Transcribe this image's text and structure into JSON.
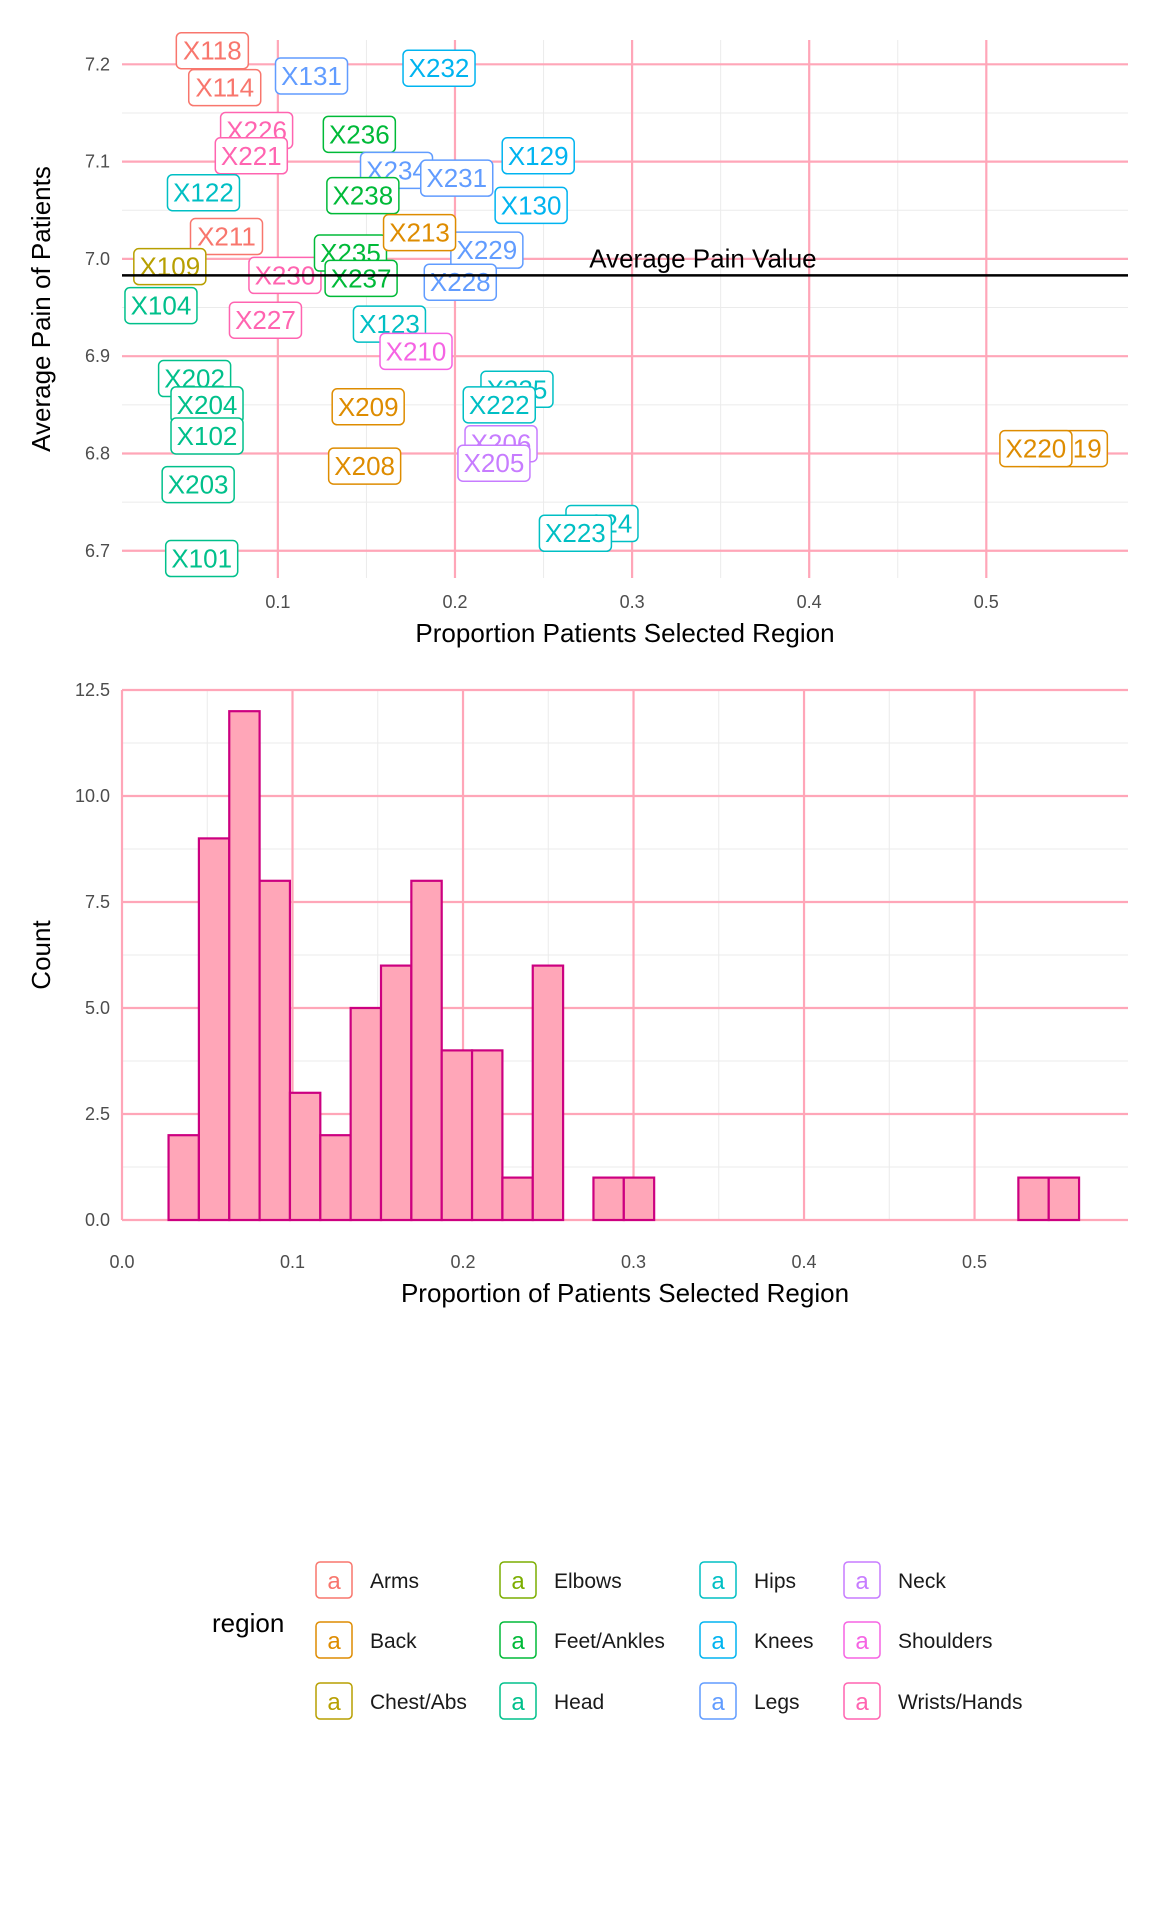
{
  "chart_data": [
    {
      "type": "scatter",
      "title": "",
      "xlabel": "Proportion Patients Selected Region",
      "ylabel": "Average Pain of Patients",
      "xlim": [
        0.012,
        0.58
      ],
      "ylim": [
        6.672,
        7.225
      ],
      "xticks": [
        0.1,
        0.2,
        0.3,
        0.4,
        0.5
      ],
      "yticks": [
        6.7,
        6.8,
        6.9,
        7.0,
        7.1,
        7.2
      ],
      "xtick_labels": [
        "0.1",
        "0.2",
        "0.3",
        "0.4",
        "0.5"
      ],
      "ytick_labels": [
        "6.7",
        "6.8",
        "6.9",
        "7.0",
        "7.1",
        "7.2"
      ],
      "grid": true,
      "reference_line": {
        "y": 6.983,
        "label": "Average Pain Value"
      },
      "points": [
        {
          "label": "X118",
          "x": 0.063,
          "y": 7.214,
          "region": "Arms"
        },
        {
          "label": "X114",
          "x": 0.07,
          "y": 7.176,
          "region": "Arms"
        },
        {
          "label": "X226",
          "x": 0.088,
          "y": 7.132,
          "region": "Wrists/Hands"
        },
        {
          "label": "X221",
          "x": 0.085,
          "y": 7.106,
          "region": "Wrists/Hands"
        },
        {
          "label": "X122",
          "x": 0.058,
          "y": 7.068,
          "region": "Hips"
        },
        {
          "label": "X211",
          "x": 0.071,
          "y": 7.023,
          "region": "Arms"
        },
        {
          "label": "X109",
          "x": 0.039,
          "y": 6.992,
          "region": "Chest/Abs"
        },
        {
          "label": "X104",
          "x": 0.034,
          "y": 6.952,
          "region": "Head"
        },
        {
          "label": "X230",
          "x": 0.104,
          "y": 6.983,
          "region": "Wrists/Hands"
        },
        {
          "label": "X227",
          "x": 0.093,
          "y": 6.937,
          "region": "Wrists/Hands"
        },
        {
          "label": "X202",
          "x": 0.053,
          "y": 6.877,
          "region": "Head"
        },
        {
          "label": "X204",
          "x": 0.06,
          "y": 6.85,
          "region": "Head"
        },
        {
          "label": "X102",
          "x": 0.06,
          "y": 6.818,
          "region": "Head"
        },
        {
          "label": "X203",
          "x": 0.055,
          "y": 6.768,
          "region": "Head"
        },
        {
          "label": "X101",
          "x": 0.057,
          "y": 6.692,
          "region": "Head"
        },
        {
          "label": "X131",
          "x": 0.119,
          "y": 7.188,
          "region": "Legs"
        },
        {
          "label": "X232",
          "x": 0.191,
          "y": 7.196,
          "region": "Knees"
        },
        {
          "label": "X236",
          "x": 0.146,
          "y": 7.128,
          "region": "Feet/Ankles"
        },
        {
          "label": "X234",
          "x": 0.167,
          "y": 7.091,
          "region": "Legs"
        },
        {
          "label": "X231",
          "x": 0.201,
          "y": 7.083,
          "region": "Legs"
        },
        {
          "label": "X129",
          "x": 0.247,
          "y": 7.106,
          "region": "Knees"
        },
        {
          "label": "X130",
          "x": 0.243,
          "y": 7.055,
          "region": "Knees"
        },
        {
          "label": "X238",
          "x": 0.148,
          "y": 7.065,
          "region": "Feet/Ankles"
        },
        {
          "label": "X229",
          "x": 0.218,
          "y": 7.009,
          "region": "Legs"
        },
        {
          "label": "X235",
          "x": 0.141,
          "y": 7.006,
          "region": "Feet/Ankles"
        },
        {
          "label": "X237",
          "x": 0.147,
          "y": 6.98,
          "region": "Feet/Ankles"
        },
        {
          "label": "X228",
          "x": 0.203,
          "y": 6.976,
          "region": "Legs"
        },
        {
          "label": "X123",
          "x": 0.163,
          "y": 6.933,
          "region": "Hips"
        },
        {
          "label": "X210",
          "x": 0.178,
          "y": 6.905,
          "region": "Shoulders"
        },
        {
          "label": "X225",
          "x": 0.235,
          "y": 6.866,
          "region": "Hips"
        },
        {
          "label": "X222",
          "x": 0.225,
          "y": 6.85,
          "region": "Hips"
        },
        {
          "label": "X209",
          "x": 0.151,
          "y": 6.848,
          "region": "Back"
        },
        {
          "label": "X206",
          "x": 0.226,
          "y": 6.81,
          "region": "Neck"
        },
        {
          "label": "X205",
          "x": 0.222,
          "y": 6.79,
          "region": "Neck"
        },
        {
          "label": "X208",
          "x": 0.149,
          "y": 6.787,
          "region": "Back"
        },
        {
          "label": "X224",
          "x": 0.283,
          "y": 6.728,
          "region": "Hips"
        },
        {
          "label": "X223",
          "x": 0.268,
          "y": 6.718,
          "region": "Hips"
        },
        {
          "label": "X219",
          "x": 0.548,
          "y": 6.805,
          "region": "Back"
        },
        {
          "label": "X220",
          "x": 0.528,
          "y": 6.805,
          "region": "Back"
        },
        {
          "label": "X213",
          "x": 0.18,
          "y": 7.027,
          "region": "Back"
        }
      ]
    },
    {
      "type": "bar",
      "title": "",
      "xlabel": "Proportion of Patients Selected Region",
      "ylabel": "Count",
      "xlim": [
        0.0,
        0.59
      ],
      "ylim": [
        0,
        12.5
      ],
      "xticks": [
        0.0,
        0.1,
        0.2,
        0.3,
        0.4,
        0.5
      ],
      "yticks": [
        0.0,
        2.5,
        5.0,
        7.5,
        10.0,
        12.5
      ],
      "xtick_labels": [
        "0.0",
        "0.1",
        "0.2",
        "0.3",
        "0.4",
        "0.5"
      ],
      "ytick_labels": [
        "0.0",
        "2.5",
        "5.0",
        "7.5",
        "10.0",
        "12.5"
      ],
      "grid": true,
      "bin_start": 0.0273,
      "bin_width": 0.0178,
      "values": [
        2,
        9,
        12,
        8,
        3,
        2,
        5,
        6,
        8,
        4,
        4,
        1,
        6,
        0,
        1,
        1,
        0,
        0,
        0,
        0,
        0,
        0,
        0,
        0,
        0,
        0,
        0,
        0,
        1,
        1
      ],
      "colors": {
        "fill": "#FFA6B8",
        "stroke": "#CC0080"
      }
    }
  ],
  "legend": {
    "title": "region",
    "key_glyph": "a",
    "position": "bottom",
    "columns": [
      [
        {
          "name": "Arms",
          "color": "#F8766D"
        },
        {
          "name": "Back",
          "color": "#DE8C00"
        },
        {
          "name": "Chest/Abs",
          "color": "#B79F00"
        }
      ],
      [
        {
          "name": "Elbows",
          "color": "#7CAE00"
        },
        {
          "name": "Feet/Ankles",
          "color": "#00BA38"
        },
        {
          "name": "Head",
          "color": "#00C08B"
        }
      ],
      [
        {
          "name": "Hips",
          "color": "#00BFC4"
        },
        {
          "name": "Knees",
          "color": "#00B4F0"
        },
        {
          "name": "Legs",
          "color": "#619CFF"
        }
      ],
      [
        {
          "name": "Neck",
          "color": "#C77CFF"
        },
        {
          "name": "Shoulders",
          "color": "#F564E3"
        },
        {
          "name": "Wrists/Hands",
          "color": "#FF64B0"
        }
      ]
    ]
  },
  "colors": {
    "grid_major": "#FFA6B8",
    "grid_minor": "#EBEBEB",
    "text": "#4D4D4D",
    "title": "#000000"
  }
}
